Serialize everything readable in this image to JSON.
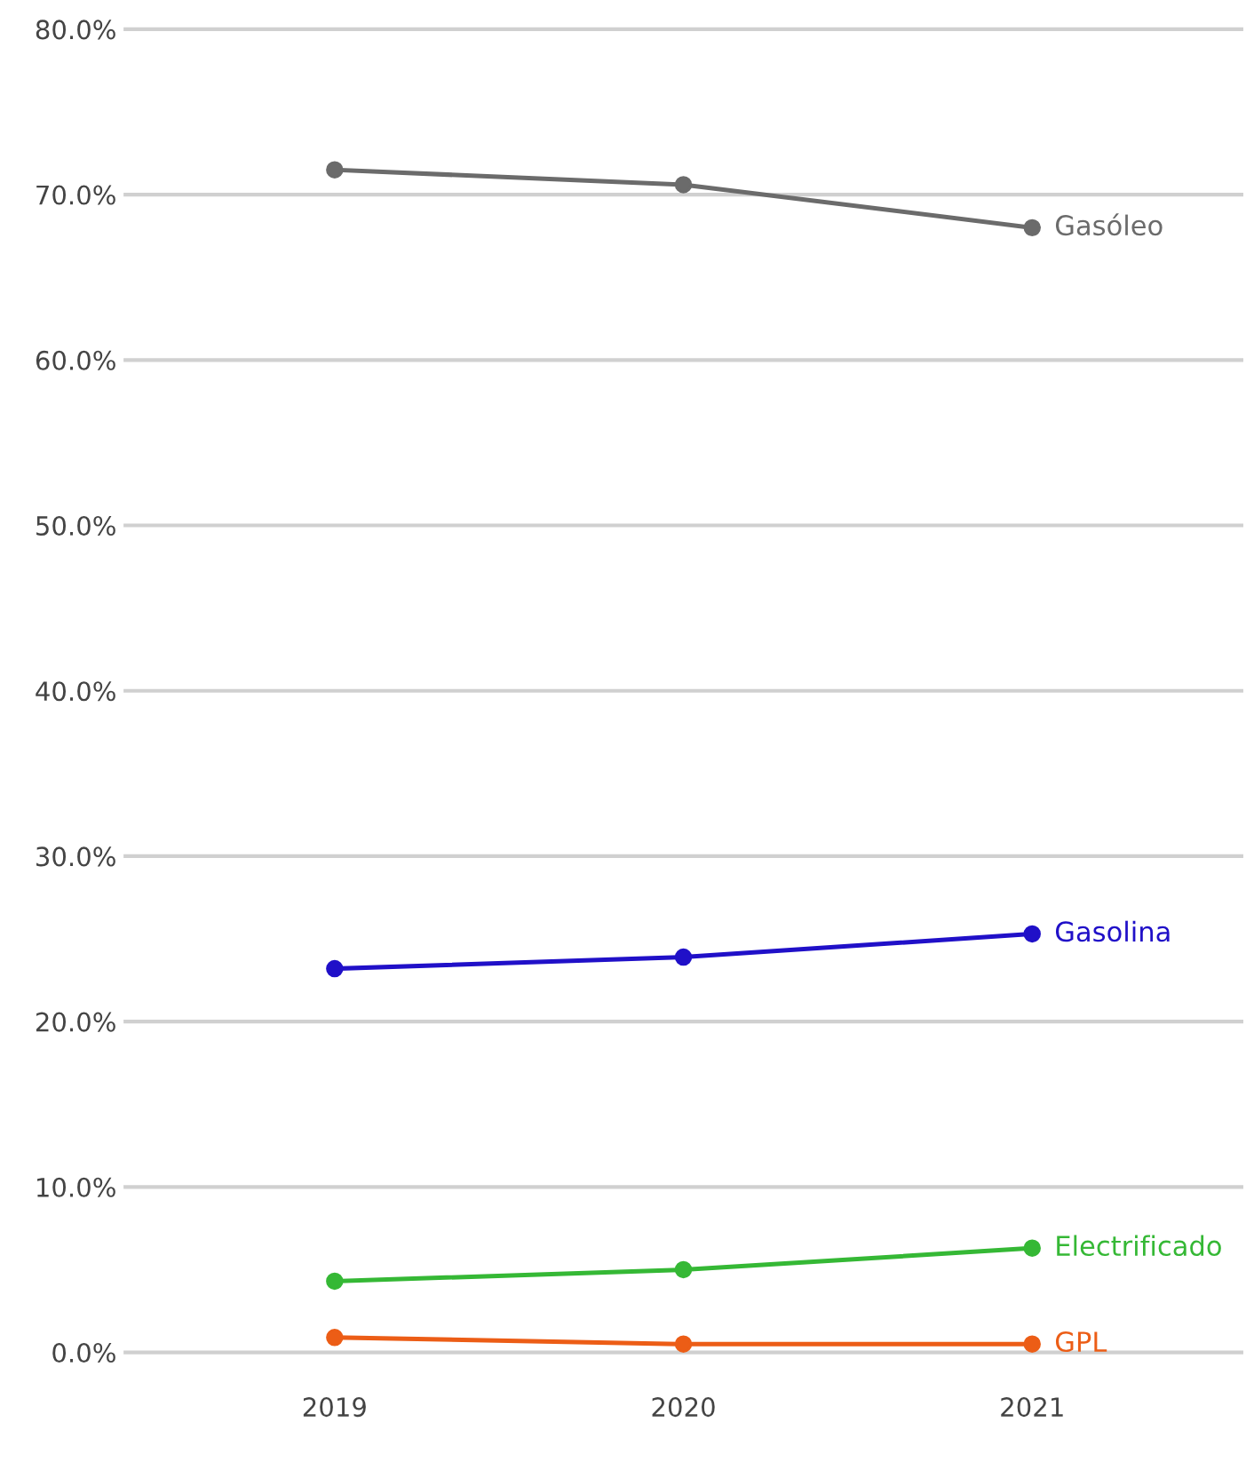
{
  "chart_data": {
    "type": "line",
    "categories": [
      "2019",
      "2020",
      "2021"
    ],
    "series": [
      {
        "name": "Gasóleo",
        "color": "#6b6b6b",
        "values": [
          71.5,
          70.6,
          68.0
        ]
      },
      {
        "name": "Gasolina",
        "color": "#2010c8",
        "values": [
          23.2,
          23.9,
          25.3
        ]
      },
      {
        "name": "Electrificado",
        "color": "#35b835",
        "values": [
          4.3,
          5.0,
          6.3
        ]
      },
      {
        "name": "GPL",
        "color": "#ec5d16",
        "values": [
          0.9,
          0.5,
          0.5
        ]
      }
    ],
    "ylim": [
      0,
      80
    ],
    "yticks": [
      {
        "value": 0,
        "label": "0.0%"
      },
      {
        "value": 10,
        "label": "10.0%"
      },
      {
        "value": 20,
        "label": "20.0%"
      },
      {
        "value": 30,
        "label": "30.0%"
      },
      {
        "value": 40,
        "label": "40.0%"
      },
      {
        "value": 50,
        "label": "50.0%"
      },
      {
        "value": 60,
        "label": "60.0%"
      },
      {
        "value": 70,
        "label": "70.0%"
      },
      {
        "value": 80,
        "label": "80.0%"
      }
    ],
    "grid": "y",
    "marker": "circle",
    "line_style": "solid",
    "legend": false
  }
}
